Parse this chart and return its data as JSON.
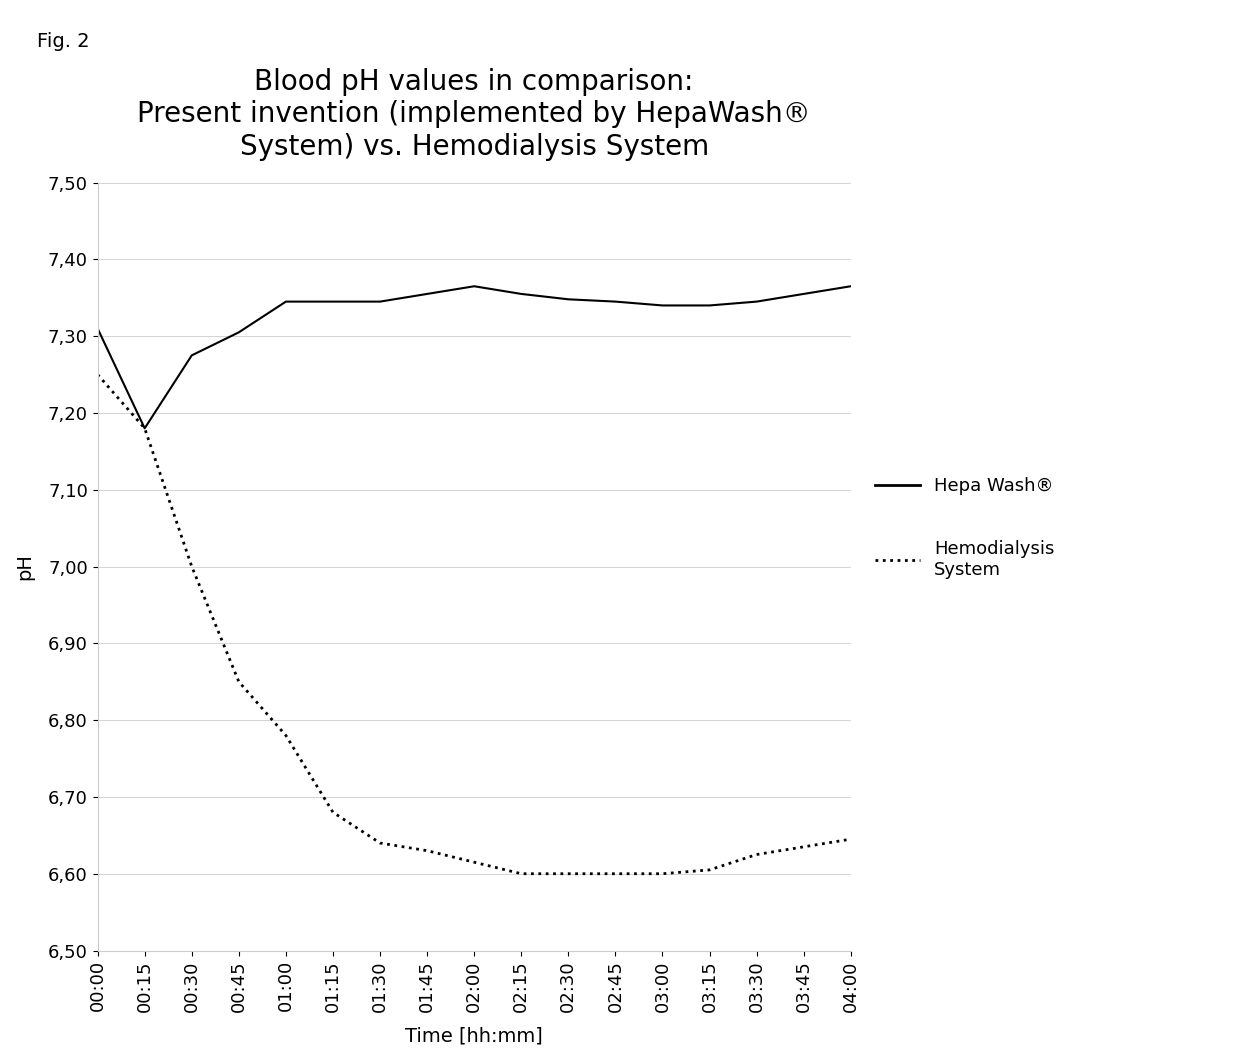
{
  "title_line1": "Blood pH values in comparison:",
  "title_line2": "Present invention (implemented by HepaWash®",
  "title_line3": "System) vs. Hemodialysis System",
  "xlabel": "Time [hh:mm]",
  "ylabel": "pH",
  "fig_label": "Fig. 2",
  "ylim": [
    6.5,
    7.5
  ],
  "yticks": [
    6.5,
    6.6,
    6.7,
    6.8,
    6.9,
    7.0,
    7.1,
    7.2,
    7.3,
    7.4,
    7.5
  ],
  "ytick_labels": [
    "6,50",
    "6,60",
    "6,70",
    "6,80",
    "6,90",
    "7,00",
    "7,10",
    "7,20",
    "7,30",
    "7,40",
    "7,50"
  ],
  "xtick_labels": [
    "00:00",
    "00:15",
    "00:30",
    "00:45",
    "01:00",
    "01:15",
    "01:30",
    "01:45",
    "02:00",
    "02:15",
    "02:30",
    "02:45",
    "03:00",
    "03:15",
    "03:30",
    "03:45",
    "04:00"
  ],
  "x_values": [
    0,
    15,
    30,
    45,
    60,
    75,
    90,
    105,
    120,
    135,
    150,
    165,
    180,
    195,
    210,
    225,
    240
  ],
  "hepawash_y": [
    7.31,
    7.18,
    7.275,
    7.305,
    7.345,
    7.345,
    7.345,
    7.355,
    7.365,
    7.355,
    7.348,
    7.345,
    7.34,
    7.34,
    7.345,
    7.355,
    7.365
  ],
  "hemodialysis_y": [
    7.25,
    7.18,
    7.0,
    6.85,
    6.78,
    6.68,
    6.64,
    6.63,
    6.615,
    6.6,
    6.6,
    6.6,
    6.6,
    6.605,
    6.625,
    6.635,
    6.645
  ],
  "hepawash_color": "#000000",
  "hemodialysis_color": "#000000",
  "grid_color": "#aaaaaa",
  "background_color": "#ffffff",
  "plot_bg_color": "#ffffff",
  "legend_hepawash": "Hepa Wash®",
  "legend_hemodialysis": "Hemodialysis\nSystem",
  "title_fontsize": 20,
  "axis_label_fontsize": 14,
  "tick_fontsize": 13,
  "legend_fontsize": 13
}
